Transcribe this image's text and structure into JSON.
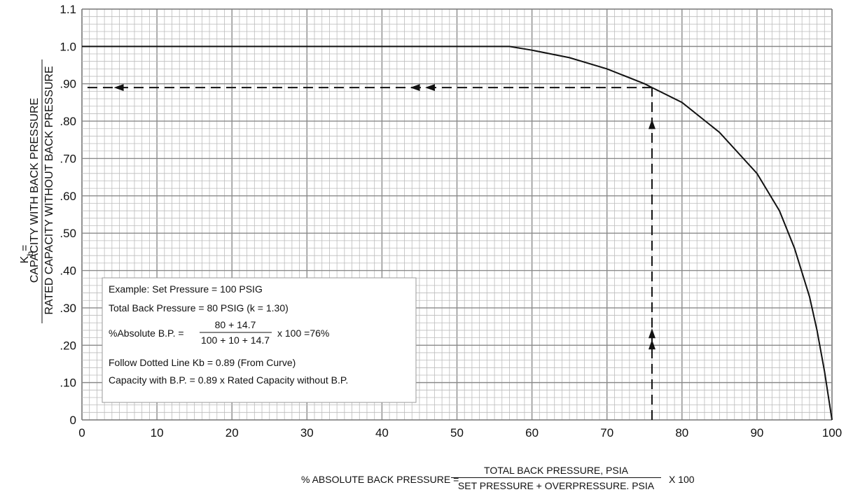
{
  "chart_data": {
    "type": "line",
    "title": "",
    "xlim": [
      0,
      100
    ],
    "ylim": [
      0,
      1.1
    ],
    "grid": true,
    "x_ticks": [
      {
        "v": 0,
        "label": "0"
      },
      {
        "v": 10,
        "label": "10"
      },
      {
        "v": 20,
        "label": "20"
      },
      {
        "v": 30,
        "label": "30"
      },
      {
        "v": 40,
        "label": "40"
      },
      {
        "v": 50,
        "label": "50"
      },
      {
        "v": 60,
        "label": "60"
      },
      {
        "v": 70,
        "label": "70"
      },
      {
        "v": 80,
        "label": "80"
      },
      {
        "v": 90,
        "label": "90"
      },
      {
        "v": 100,
        "label": "100"
      }
    ],
    "y_ticks": [
      {
        "v": 0,
        "label": "0"
      },
      {
        "v": 0.1,
        "label": ".10"
      },
      {
        "v": 0.2,
        "label": ".20"
      },
      {
        "v": 0.3,
        "label": ".30"
      },
      {
        "v": 0.4,
        "label": ".40"
      },
      {
        "v": 0.5,
        "label": ".50"
      },
      {
        "v": 0.6,
        "label": ".60"
      },
      {
        "v": 0.7,
        "label": ".70"
      },
      {
        "v": 0.8,
        "label": ".80"
      },
      {
        "v": 0.9,
        "label": ".90"
      },
      {
        "v": 1.0,
        "label": "1.0"
      },
      {
        "v": 1.1,
        "label": "1.1"
      }
    ],
    "series": [
      {
        "x": [
          0,
          57,
          60,
          65,
          70,
          75,
          76,
          80,
          85,
          90,
          93,
          95,
          97,
          98,
          99,
          100
        ],
        "y": [
          1.0,
          1.0,
          0.99,
          0.97,
          0.94,
          0.9,
          0.89,
          0.85,
          0.77,
          0.66,
          0.56,
          0.46,
          0.33,
          0.24,
          0.13,
          0.0
        ]
      }
    ],
    "example_path": {
      "x": 76,
      "y": 0.89
    },
    "ylabel": {
      "prefix": "K",
      "sub": "b",
      "eq": "=",
      "numerator": "CAPACITY WITH BACK PRESSURE",
      "denominator": "RATED CAPACITY WITHOUT BACK PRESSURE"
    },
    "xlabel": {
      "prefix": "% ABSOLUTE BACK PRESSURE =",
      "numerator": "TOTAL BACK PRESSURE, PSIA",
      "denominator": "SET PRESSURE + OVERPRESSURE. PSIA",
      "suffix": "X 100"
    },
    "annotation": {
      "line1": "Example: Set Pressure = 100 PSIG",
      "line2": "Total Back Pressure = 80 PSIG (k = 1.30)",
      "line3_prefix": "%Absolute B.P. =",
      "line3_num": "80 + 14.7",
      "line3_den": "100 + 10 + 14.7",
      "line3_suffix": "x 100 =76%",
      "line4": "Follow Dotted Line Kb = 0.89 (From Curve)",
      "line5": "Capacity with B.P. = 0.89 x Rated Capacity without B.P."
    }
  }
}
